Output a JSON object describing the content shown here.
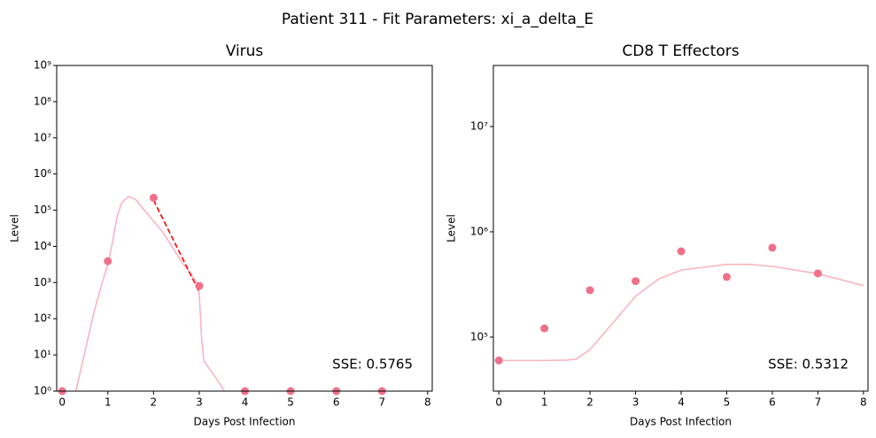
{
  "title": "Patient 311 - Fit Parameters: xi_a_delta_E",
  "chart_data": [
    {
      "type": "line",
      "title": "Virus",
      "x_label": "Days Post Infection",
      "y_label": "Level",
      "yscale": "log",
      "xlim": [
        -0.12,
        8.1
      ],
      "ylim": [
        1,
        1000000000
      ],
      "xticks": [
        0,
        1,
        2,
        3,
        4,
        5,
        6,
        7,
        8
      ],
      "yticks": [
        {
          "value": 1,
          "label": "10⁰"
        },
        {
          "value": 10,
          "label": "10¹"
        },
        {
          "value": 100,
          "label": "10²"
        },
        {
          "value": 1000,
          "label": "10³"
        },
        {
          "value": 10000,
          "label": "10⁴"
        },
        {
          "value": 100000,
          "label": "10⁵"
        },
        {
          "value": 1000000,
          "label": "10⁶"
        },
        {
          "value": 10000000,
          "label": "10⁷"
        },
        {
          "value": 100000000,
          "label": "10⁸"
        },
        {
          "value": 1000000000,
          "label": "10⁹"
        }
      ],
      "annotation": "SSE: 0.5765",
      "series": [
        {
          "mode": "line",
          "color": "#f7b6c2",
          "x": [
            0.3,
            0.5,
            0.7,
            0.9,
            1.0,
            1.1,
            1.2,
            1.3,
            1.45,
            1.6,
            1.8,
            2.0,
            2.2,
            2.4,
            2.6,
            2.8,
            2.95,
            3.0,
            3.05,
            3.1,
            3.2,
            3.4,
            3.55
          ],
          "values": [
            1,
            12.6,
            158,
            1259,
            3162,
            12590,
            63100,
            158000,
            240000,
            200000,
            100000,
            50000,
            25000,
            10000,
            4000,
            1800,
            1000,
            500,
            32,
            7,
            4.5,
            2,
            1
          ]
        },
        {
          "mode": "dashed",
          "color": "#ff0000",
          "x": [
            2,
            3
          ],
          "values": [
            190000,
            550
          ]
        },
        {
          "mode": "markers",
          "color": "#f0708a",
          "x": [
            0,
            1,
            2,
            3,
            4,
            5,
            6,
            7
          ],
          "values": [
            1,
            3900,
            220000,
            810,
            1,
            1,
            1,
            1
          ]
        }
      ]
    },
    {
      "type": "line",
      "title": "CD8 T Effectors",
      "x_label": "Days Post Infection",
      "y_label": "Level",
      "yscale": "log",
      "xlim": [
        -0.12,
        8.1
      ],
      "ylim": [
        30700,
        38000000
      ],
      "xticks": [
        0,
        1,
        2,
        3,
        4,
        5,
        6,
        7,
        8
      ],
      "yticks": [
        {
          "value": 100000,
          "label": "10⁵"
        },
        {
          "value": 1000000,
          "label": "10⁶"
        },
        {
          "value": 10000000,
          "label": "10⁷"
        }
      ],
      "annotation": "SSE: 0.5312",
      "series": [
        {
          "mode": "line",
          "color": "#f7b6c2",
          "x": [
            0,
            0.5,
            1,
            1.5,
            1.7,
            2,
            2.5,
            3,
            3.5,
            4,
            5,
            5.5,
            6,
            7,
            8
          ],
          "values": [
            60000,
            60000,
            60000,
            60500,
            62000,
            76000,
            136000,
            245000,
            355000,
            433000,
            490000,
            490000,
            470000,
            400000,
            309000
          ]
        },
        {
          "mode": "markers",
          "color": "#f0708a",
          "x": [
            0,
            1,
            2,
            3,
            4,
            5,
            6,
            7
          ],
          "values": [
            60000,
            121000,
            279000,
            340000,
            653000,
            373000,
            707000,
            403000
          ]
        }
      ]
    }
  ]
}
